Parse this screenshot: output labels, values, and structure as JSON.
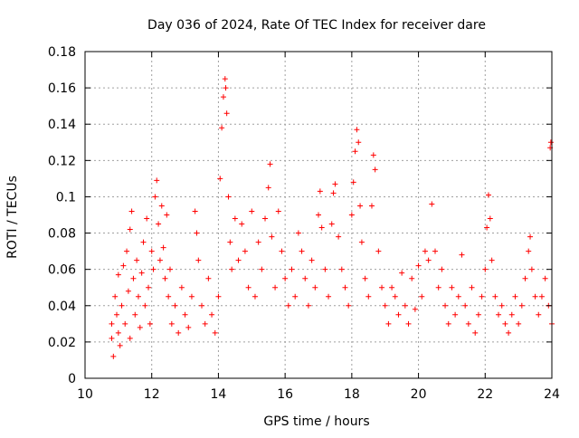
{
  "chart_data": {
    "type": "scatter",
    "title": "Day 036 of 2024, Rate Of TEC Index for receiver dare",
    "xlabel": "GPS time / hours",
    "ylabel": "ROTI / TECUs",
    "xlim": [
      10,
      24
    ],
    "ylim": [
      0,
      0.18
    ],
    "grid": true,
    "marker": "+",
    "series_color": "#ff0000",
    "x_ticks": [
      10,
      12,
      14,
      16,
      18,
      20,
      22,
      24
    ],
    "x_tick_labels": [
      "10",
      "12",
      "14",
      "16",
      "18",
      "20",
      "22",
      "24"
    ],
    "y_ticks": [
      0,
      0.02,
      0.04,
      0.06,
      0.08,
      0.1,
      0.12,
      0.14,
      0.16,
      0.18
    ],
    "y_tick_labels": [
      "0",
      "0.02",
      "0.04",
      "0.06",
      "0.08",
      "0.1",
      "0.12",
      "0.14",
      "0.16",
      "0.18"
    ],
    "points": [
      [
        10.8,
        0.022
      ],
      [
        10.8,
        0.03
      ],
      [
        10.85,
        0.012
      ],
      [
        10.9,
        0.045
      ],
      [
        10.95,
        0.035
      ],
      [
        11.0,
        0.057
      ],
      [
        11.0,
        0.025
      ],
      [
        11.05,
        0.018
      ],
      [
        11.1,
        0.04
      ],
      [
        11.15,
        0.062
      ],
      [
        11.2,
        0.03
      ],
      [
        11.25,
        0.07
      ],
      [
        11.3,
        0.048
      ],
      [
        11.35,
        0.082
      ],
      [
        11.35,
        0.022
      ],
      [
        11.4,
        0.092
      ],
      [
        11.45,
        0.055
      ],
      [
        11.5,
        0.035
      ],
      [
        11.55,
        0.065
      ],
      [
        11.6,
        0.045
      ],
      [
        11.65,
        0.028
      ],
      [
        11.7,
        0.058
      ],
      [
        11.75,
        0.075
      ],
      [
        11.8,
        0.04
      ],
      [
        11.85,
        0.088
      ],
      [
        11.9,
        0.05
      ],
      [
        11.95,
        0.03
      ],
      [
        12.0,
        0.07
      ],
      [
        12.05,
        0.06
      ],
      [
        12.1,
        0.1
      ],
      [
        12.15,
        0.109
      ],
      [
        12.2,
        0.085
      ],
      [
        12.25,
        0.065
      ],
      [
        12.3,
        0.095
      ],
      [
        12.35,
        0.072
      ],
      [
        12.4,
        0.055
      ],
      [
        12.45,
        0.09
      ],
      [
        12.5,
        0.045
      ],
      [
        12.55,
        0.06
      ],
      [
        12.6,
        0.03
      ],
      [
        12.7,
        0.04
      ],
      [
        12.8,
        0.025
      ],
      [
        12.9,
        0.05
      ],
      [
        13.0,
        0.035
      ],
      [
        13.1,
        0.028
      ],
      [
        13.2,
        0.045
      ],
      [
        13.3,
        0.092
      ],
      [
        13.35,
        0.08
      ],
      [
        13.4,
        0.065
      ],
      [
        13.5,
        0.04
      ],
      [
        13.6,
        0.03
      ],
      [
        13.7,
        0.055
      ],
      [
        13.8,
        0.035
      ],
      [
        13.9,
        0.025
      ],
      [
        14.0,
        0.045
      ],
      [
        14.05,
        0.11
      ],
      [
        14.1,
        0.138
      ],
      [
        14.15,
        0.155
      ],
      [
        14.2,
        0.165
      ],
      [
        14.22,
        0.16
      ],
      [
        14.25,
        0.146
      ],
      [
        14.3,
        0.1
      ],
      [
        14.35,
        0.075
      ],
      [
        14.4,
        0.06
      ],
      [
        14.5,
        0.088
      ],
      [
        14.6,
        0.065
      ],
      [
        14.7,
        0.085
      ],
      [
        14.8,
        0.07
      ],
      [
        14.9,
        0.05
      ],
      [
        15.0,
        0.092
      ],
      [
        15.1,
        0.045
      ],
      [
        15.2,
        0.075
      ],
      [
        15.3,
        0.06
      ],
      [
        15.4,
        0.088
      ],
      [
        15.5,
        0.105
      ],
      [
        15.55,
        0.118
      ],
      [
        15.6,
        0.078
      ],
      [
        15.7,
        0.05
      ],
      [
        15.8,
        0.092
      ],
      [
        15.9,
        0.07
      ],
      [
        16.0,
        0.055
      ],
      [
        16.1,
        0.04
      ],
      [
        16.2,
        0.06
      ],
      [
        16.3,
        0.045
      ],
      [
        16.4,
        0.08
      ],
      [
        16.5,
        0.07
      ],
      [
        16.6,
        0.055
      ],
      [
        16.7,
        0.04
      ],
      [
        16.8,
        0.065
      ],
      [
        16.9,
        0.05
      ],
      [
        17.0,
        0.09
      ],
      [
        17.05,
        0.103
      ],
      [
        17.1,
        0.083
      ],
      [
        17.2,
        0.06
      ],
      [
        17.3,
        0.045
      ],
      [
        17.4,
        0.085
      ],
      [
        17.45,
        0.102
      ],
      [
        17.5,
        0.107
      ],
      [
        17.6,
        0.078
      ],
      [
        17.7,
        0.06
      ],
      [
        17.8,
        0.05
      ],
      [
        17.9,
        0.04
      ],
      [
        18.0,
        0.09
      ],
      [
        18.05,
        0.108
      ],
      [
        18.1,
        0.125
      ],
      [
        18.15,
        0.137
      ],
      [
        18.2,
        0.13
      ],
      [
        18.25,
        0.095
      ],
      [
        18.3,
        0.075
      ],
      [
        18.4,
        0.055
      ],
      [
        18.5,
        0.045
      ],
      [
        18.6,
        0.095
      ],
      [
        18.65,
        0.123
      ],
      [
        18.7,
        0.115
      ],
      [
        18.8,
        0.07
      ],
      [
        18.9,
        0.05
      ],
      [
        19.0,
        0.04
      ],
      [
        19.1,
        0.03
      ],
      [
        19.2,
        0.05
      ],
      [
        19.3,
        0.045
      ],
      [
        19.4,
        0.035
      ],
      [
        19.5,
        0.058
      ],
      [
        19.6,
        0.04
      ],
      [
        19.7,
        0.03
      ],
      [
        19.8,
        0.055
      ],
      [
        19.9,
        0.038
      ],
      [
        20.0,
        0.062
      ],
      [
        20.1,
        0.045
      ],
      [
        20.2,
        0.07
      ],
      [
        20.3,
        0.065
      ],
      [
        20.4,
        0.096
      ],
      [
        20.5,
        0.07
      ],
      [
        20.6,
        0.05
      ],
      [
        20.7,
        0.06
      ],
      [
        20.8,
        0.04
      ],
      [
        20.9,
        0.03
      ],
      [
        21.0,
        0.05
      ],
      [
        21.1,
        0.035
      ],
      [
        21.2,
        0.045
      ],
      [
        21.3,
        0.068
      ],
      [
        21.4,
        0.04
      ],
      [
        21.5,
        0.03
      ],
      [
        21.6,
        0.05
      ],
      [
        21.7,
        0.025
      ],
      [
        21.8,
        0.035
      ],
      [
        21.9,
        0.045
      ],
      [
        22.0,
        0.06
      ],
      [
        22.05,
        0.083
      ],
      [
        22.1,
        0.101
      ],
      [
        22.15,
        0.088
      ],
      [
        22.2,
        0.065
      ],
      [
        22.3,
        0.045
      ],
      [
        22.4,
        0.035
      ],
      [
        22.5,
        0.04
      ],
      [
        22.6,
        0.03
      ],
      [
        22.7,
        0.025
      ],
      [
        22.8,
        0.035
      ],
      [
        22.9,
        0.045
      ],
      [
        23.0,
        0.03
      ],
      [
        23.1,
        0.04
      ],
      [
        23.2,
        0.055
      ],
      [
        23.3,
        0.07
      ],
      [
        23.35,
        0.078
      ],
      [
        23.4,
        0.06
      ],
      [
        23.5,
        0.045
      ],
      [
        23.6,
        0.035
      ],
      [
        23.7,
        0.045
      ],
      [
        23.8,
        0.055
      ],
      [
        23.9,
        0.04
      ],
      [
        23.95,
        0.127
      ],
      [
        23.97,
        0.13
      ],
      [
        24.0,
        0.03
      ]
    ]
  }
}
